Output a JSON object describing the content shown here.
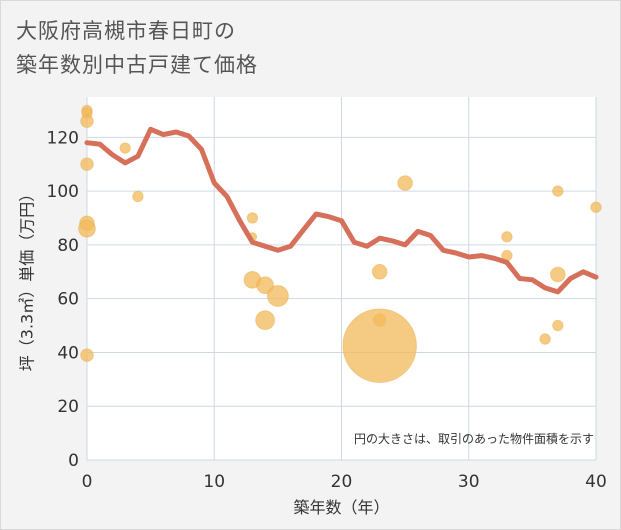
{
  "title_lines": [
    "大阪府高槻市春日町の",
    "築年数別中古戸建て価格"
  ],
  "chart_data": {
    "type": "scatter",
    "xlabel": "築年数（年）",
    "ylabel": "坪（3.3㎡）単価（万円）",
    "xlim": [
      0,
      40
    ],
    "ylim": [
      0,
      135
    ],
    "xticks": [
      0,
      10,
      20,
      30,
      40
    ],
    "yticks": [
      0,
      20,
      40,
      60,
      80,
      100,
      120
    ],
    "grid": true,
    "note": "円の大きさは、取引のあった物件面積を示す",
    "colors": {
      "line": "#d6705a",
      "bubble": "#f2b95a",
      "grid": "#cfd9e6",
      "plot_bg": "#ffffff"
    },
    "line_series": {
      "x": [
        0,
        1,
        2,
        3,
        4,
        5,
        6,
        7,
        8,
        9,
        10,
        11,
        12,
        13,
        14,
        15,
        16,
        17,
        18,
        19,
        20,
        21,
        22,
        23,
        24,
        25,
        26,
        27,
        28,
        29,
        30,
        31,
        32,
        33,
        34,
        35,
        36,
        37,
        38,
        39,
        40
      ],
      "y": [
        118,
        117.5,
        113.5,
        110.5,
        113,
        123,
        121,
        122,
        120.5,
        115.5,
        103,
        98,
        89,
        81,
        79.5,
        78,
        79.5,
        85.5,
        91.5,
        90.5,
        89,
        81,
        79.5,
        82.5,
        81.5,
        80,
        85,
        83.5,
        78,
        77,
        75.5,
        76,
        75,
        73.5,
        67.5,
        67,
        64,
        62.5,
        67.5,
        70,
        68
      ]
    },
    "bubbles": [
      {
        "x": 0,
        "y": 130,
        "size": 5
      },
      {
        "x": 0,
        "y": 129,
        "size": 5
      },
      {
        "x": 0,
        "y": 126,
        "size": 6
      },
      {
        "x": 0,
        "y": 110,
        "size": 6
      },
      {
        "x": 0,
        "y": 88,
        "size": 7
      },
      {
        "x": 0,
        "y": 86,
        "size": 8
      },
      {
        "x": 0,
        "y": 39,
        "size": 6
      },
      {
        "x": 3,
        "y": 116,
        "size": 5
      },
      {
        "x": 4,
        "y": 98,
        "size": 5
      },
      {
        "x": 13,
        "y": 90,
        "size": 5
      },
      {
        "x": 13,
        "y": 83,
        "size": 4
      },
      {
        "x": 13,
        "y": 67,
        "size": 8
      },
      {
        "x": 14,
        "y": 65,
        "size": 8
      },
      {
        "x": 14,
        "y": 52,
        "size": 9
      },
      {
        "x": 15,
        "y": 61,
        "size": 10
      },
      {
        "x": 23,
        "y": 70,
        "size": 7
      },
      {
        "x": 23,
        "y": 52,
        "size": 6
      },
      {
        "x": 23,
        "y": 42.5,
        "size": 35
      },
      {
        "x": 25,
        "y": 103,
        "size": 7
      },
      {
        "x": 33,
        "y": 83,
        "size": 5
      },
      {
        "x": 33,
        "y": 76,
        "size": 5
      },
      {
        "x": 36,
        "y": 45,
        "size": 5
      },
      {
        "x": 37,
        "y": 100,
        "size": 5
      },
      {
        "x": 37,
        "y": 69,
        "size": 7
      },
      {
        "x": 37,
        "y": 50,
        "size": 5
      },
      {
        "x": 40,
        "y": 94,
        "size": 5
      }
    ]
  }
}
